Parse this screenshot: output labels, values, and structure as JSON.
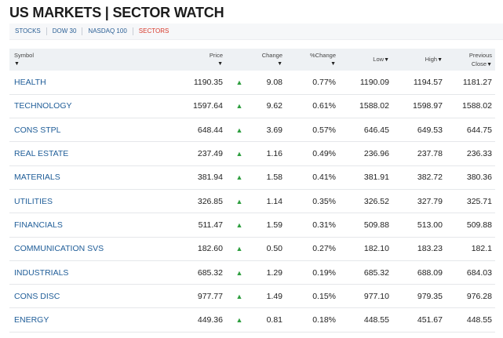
{
  "page": {
    "title": "US MARKETS | SECTOR WATCH"
  },
  "tabs": [
    {
      "label": "STOCKS",
      "active": false
    },
    {
      "label": "DOW 30",
      "active": false
    },
    {
      "label": "NASDAQ 100",
      "active": false
    },
    {
      "label": "SECTORS",
      "active": true
    }
  ],
  "colors": {
    "link_blue": "#1f5d98",
    "active_tab_red": "#d83a2c",
    "up_green": "#2e9e3f",
    "header_bg": "#eef1f4"
  },
  "table": {
    "headers": {
      "symbol": "Symbol",
      "price": "Price",
      "change": "Change",
      "pct_change": "%Change",
      "low": "Low",
      "high": "High",
      "prev_close_line1": "Previous",
      "prev_close_line2": "Close",
      "sort_glyph": "▼"
    },
    "up_glyph": "▲",
    "rows": [
      {
        "symbol": "HEALTH",
        "price": "1190.35",
        "change": "9.08",
        "pct": "0.77%",
        "low": "1190.09",
        "high": "1194.57",
        "prev": "1181.27"
      },
      {
        "symbol": "TECHNOLOGY",
        "price": "1597.64",
        "change": "9.62",
        "pct": "0.61%",
        "low": "1588.02",
        "high": "1598.97",
        "prev": "1588.02"
      },
      {
        "symbol": "CONS STPL",
        "price": "648.44",
        "change": "3.69",
        "pct": "0.57%",
        "low": "646.45",
        "high": "649.53",
        "prev": "644.75"
      },
      {
        "symbol": "REAL ESTATE",
        "price": "237.49",
        "change": "1.16",
        "pct": "0.49%",
        "low": "236.96",
        "high": "237.78",
        "prev": "236.33"
      },
      {
        "symbol": "MATERIALS",
        "price": "381.94",
        "change": "1.58",
        "pct": "0.41%",
        "low": "381.91",
        "high": "382.72",
        "prev": "380.36"
      },
      {
        "symbol": "UTILITIES",
        "price": "326.85",
        "change": "1.14",
        "pct": "0.35%",
        "low": "326.52",
        "high": "327.79",
        "prev": "325.71"
      },
      {
        "symbol": "FINANCIALS",
        "price": "511.47",
        "change": "1.59",
        "pct": "0.31%",
        "low": "509.88",
        "high": "513.00",
        "prev": "509.88"
      },
      {
        "symbol": "COMMUNICATION SVS",
        "price": "182.60",
        "change": "0.50",
        "pct": "0.27%",
        "low": "182.10",
        "high": "183.23",
        "prev": "182.1"
      },
      {
        "symbol": "INDUSTRIALS",
        "price": "685.32",
        "change": "1.29",
        "pct": "0.19%",
        "low": "685.32",
        "high": "688.09",
        "prev": "684.03"
      },
      {
        "symbol": "CONS DISC",
        "price": "977.77",
        "change": "1.49",
        "pct": "0.15%",
        "low": "977.10",
        "high": "979.35",
        "prev": "976.28"
      },
      {
        "symbol": "ENERGY",
        "price": "449.36",
        "change": "0.81",
        "pct": "0.18%",
        "low": "448.55",
        "high": "451.67",
        "prev": "448.55"
      }
    ]
  }
}
